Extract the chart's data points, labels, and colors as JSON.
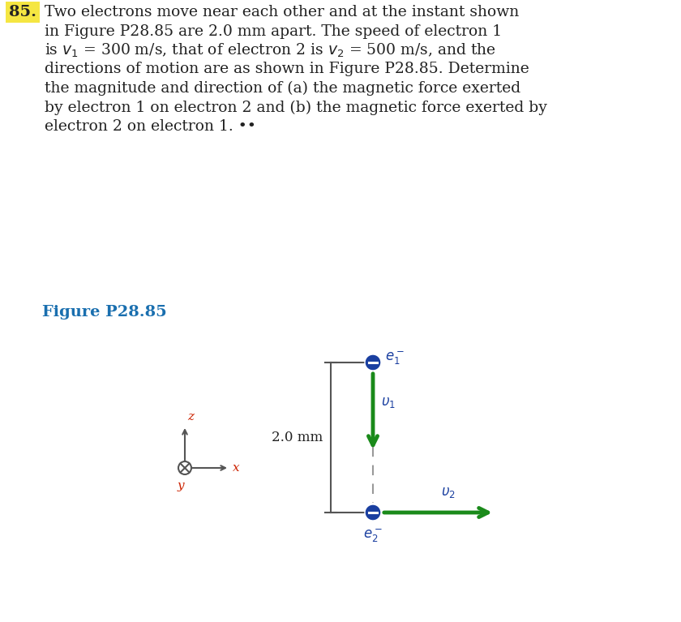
{
  "bg_color": "#ffffff",
  "problem_number": "85.",
  "text_color": "#222222",
  "highlight_color": "#f5e642",
  "figure_label": "Figure P28.85",
  "figure_label_color": "#1a6faf",
  "dim_label": "2.0 mm",
  "arrow_color": "#1a8a1a",
  "electron_color": "#1a3fa0",
  "dim_line_color": "#555555",
  "axis_color": "#555555",
  "dashed_line_color": "#999999",
  "axis_label_color": "#cc2200",
  "text_lines_main": [
    "Two electrons move near each other and at the instant shown",
    "in Figure P28.85 are 2.0 mm apart. The speed of electron 1",
    "directions of motion are as shown in Figure P28.85. Determine",
    "the magnitude and direction of (a) the magnetic force exerted",
    "by electron 1 on electron 2 and (b) the magnetic force exerted by",
    "electron 2 on electron 1. ••"
  ],
  "line3_part1": "is ",
  "line3_v1": "v",
  "line3_sub1": "1",
  "line3_mid": " = 300 m/s, that of electron 2 is ",
  "line3_v2": "v",
  "line3_sub2": "2",
  "line3_end": " = 500 m/s, and the"
}
